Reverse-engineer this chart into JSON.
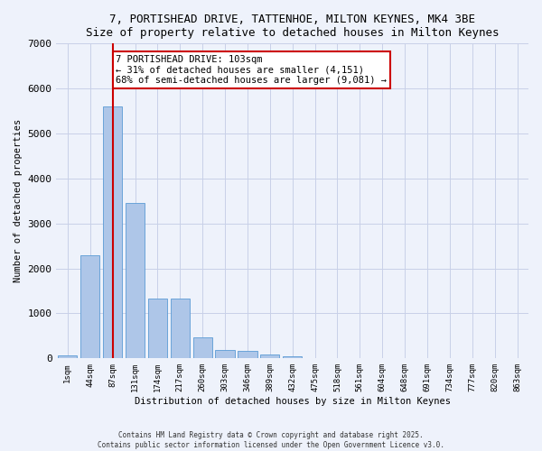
{
  "title_line1": "7, PORTISHEAD DRIVE, TATTENHOE, MILTON KEYNES, MK4 3BE",
  "title_line2": "Size of property relative to detached houses in Milton Keynes",
  "xlabel": "Distribution of detached houses by size in Milton Keynes",
  "ylabel": "Number of detached properties",
  "categories": [
    "1sqm",
    "44sqm",
    "87sqm",
    "131sqm",
    "174sqm",
    "217sqm",
    "260sqm",
    "303sqm",
    "346sqm",
    "389sqm",
    "432sqm",
    "475sqm",
    "518sqm",
    "561sqm",
    "604sqm",
    "648sqm",
    "691sqm",
    "734sqm",
    "777sqm",
    "820sqm",
    "863sqm"
  ],
  "bar_heights": [
    60,
    2300,
    5600,
    3450,
    1330,
    1330,
    470,
    180,
    160,
    80,
    40,
    10,
    5,
    3,
    2,
    2,
    1,
    1,
    1,
    1,
    1
  ],
  "bar_color": "#aec6e8",
  "bar_edge_color": "#5b9bd5",
  "ylim": [
    0,
    7000
  ],
  "yticks": [
    0,
    1000,
    2000,
    3000,
    4000,
    5000,
    6000,
    7000
  ],
  "property_bin_index": 2,
  "vline_color": "#cc0000",
  "annotation_title": "7 PORTISHEAD DRIVE: 103sqm",
  "annotation_line2": "← 31% of detached houses are smaller (4,151)",
  "annotation_line3": "68% of semi-detached houses are larger (9,081) →",
  "annotation_box_color": "#ffffff",
  "annotation_box_edge": "#cc0000",
  "background_color": "#eef2fb",
  "grid_color": "#c8d0e8",
  "footer_line1": "Contains HM Land Registry data © Crown copyright and database right 2025.",
  "footer_line2": "Contains public sector information licensed under the Open Government Licence v3.0."
}
